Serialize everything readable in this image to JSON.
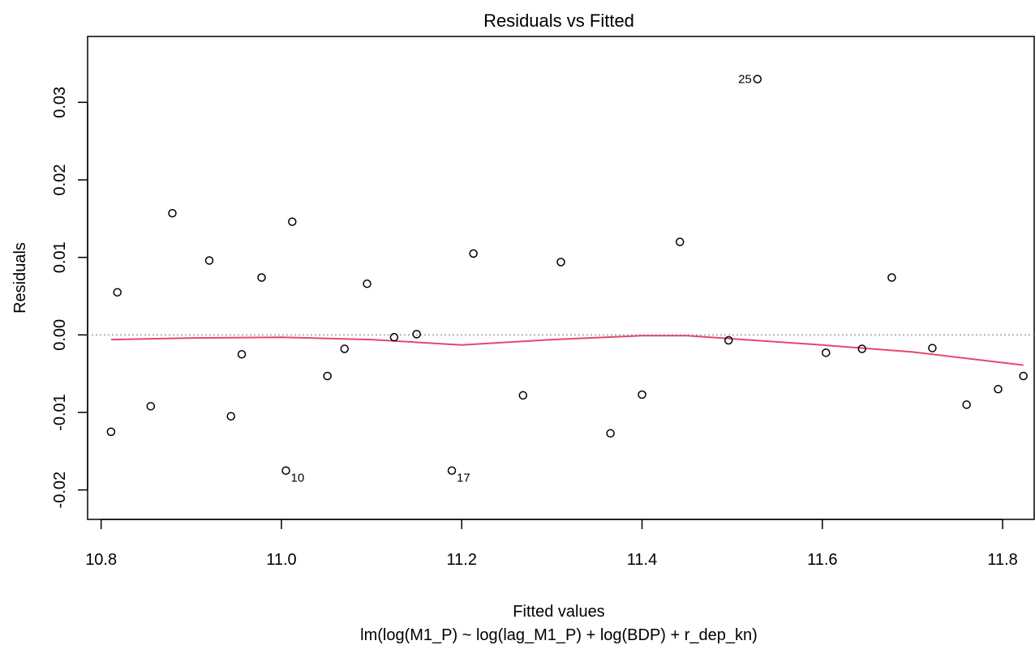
{
  "chart_data": {
    "type": "scatter",
    "title": "Residuals vs Fitted",
    "xlabel": "Fitted values",
    "subtitle": "lm(log(M1_P) ~ log(lag_M1_P) + log(BDP) + r_dep_kn)",
    "ylabel": "Residuals",
    "xlim": [
      10.785,
      11.835
    ],
    "ylim": [
      -0.0238,
      0.0385
    ],
    "x_ticks": [
      "10.8",
      "11.0",
      "11.2",
      "11.4",
      "11.6",
      "11.8"
    ],
    "y_ticks": [
      "-0.02",
      "-0.01",
      "0.00",
      "0.01",
      "0.02",
      "0.03"
    ],
    "reference_line": {
      "y": 0,
      "style": "dotted",
      "color": "#a0a0a0"
    },
    "points": [
      {
        "x": 10.811,
        "y": -0.0125
      },
      {
        "x": 10.818,
        "y": 0.0055
      },
      {
        "x": 10.855,
        "y": -0.0092
      },
      {
        "x": 10.879,
        "y": 0.0157
      },
      {
        "x": 10.92,
        "y": 0.0096
      },
      {
        "x": 10.944,
        "y": -0.0105
      },
      {
        "x": 10.956,
        "y": -0.0025
      },
      {
        "x": 10.978,
        "y": 0.0074
      },
      {
        "x": 11.005,
        "y": -0.0175,
        "label": "10"
      },
      {
        "x": 11.012,
        "y": 0.0146
      },
      {
        "x": 11.051,
        "y": -0.0053
      },
      {
        "x": 11.07,
        "y": -0.0018
      },
      {
        "x": 11.095,
        "y": 0.0066
      },
      {
        "x": 11.125,
        "y": -0.0003
      },
      {
        "x": 11.15,
        "y": 0.0001
      },
      {
        "x": 11.189,
        "y": -0.0175,
        "label": "17"
      },
      {
        "x": 11.213,
        "y": 0.0105
      },
      {
        "x": 11.268,
        "y": -0.0078
      },
      {
        "x": 11.31,
        "y": 0.0094
      },
      {
        "x": 11.365,
        "y": -0.0127
      },
      {
        "x": 11.4,
        "y": -0.0077
      },
      {
        "x": 11.442,
        "y": 0.012
      },
      {
        "x": 11.496,
        "y": -0.0007
      },
      {
        "x": 11.528,
        "y": 0.033,
        "label": "25"
      },
      {
        "x": 11.604,
        "y": -0.0023
      },
      {
        "x": 11.644,
        "y": -0.0018
      },
      {
        "x": 11.677,
        "y": 0.0074
      },
      {
        "x": 11.722,
        "y": -0.0017
      },
      {
        "x": 11.76,
        "y": -0.009
      },
      {
        "x": 11.795,
        "y": -0.007
      },
      {
        "x": 11.823,
        "y": -0.0053
      }
    ],
    "smoother": {
      "color": "#e5486a",
      "points": [
        {
          "x": 10.811,
          "y": -0.0006
        },
        {
          "x": 10.9,
          "y": -0.0004
        },
        {
          "x": 11.0,
          "y": -0.0003
        },
        {
          "x": 11.1,
          "y": -0.0006
        },
        {
          "x": 11.2,
          "y": -0.0013
        },
        {
          "x": 11.3,
          "y": -0.0006
        },
        {
          "x": 11.4,
          "y": -0.0001
        },
        {
          "x": 11.45,
          "y": -0.0001
        },
        {
          "x": 11.5,
          "y": -0.0005
        },
        {
          "x": 11.6,
          "y": -0.0013
        },
        {
          "x": 11.7,
          "y": -0.0022
        },
        {
          "x": 11.823,
          "y": -0.0039
        }
      ]
    },
    "grid": false,
    "legend": "none"
  }
}
